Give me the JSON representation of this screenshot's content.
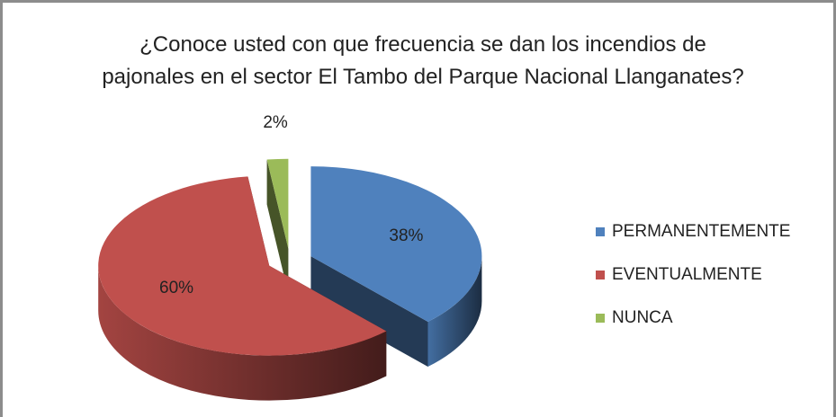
{
  "chart_data": {
    "type": "pie3d",
    "title": "¿Conoce usted con que frecuencia se dan los incendios de pajonales en el sector El Tambo del Parque Nacional Llanganates?",
    "categories": [
      "PERMANENTEMENTE",
      "EVENTUALMENTE",
      "NUNCA"
    ],
    "values": [
      38,
      60,
      2
    ],
    "value_labels": [
      "38%",
      "60%",
      "2%"
    ],
    "colors": [
      "#4f81bd",
      "#c0504d",
      "#9bbb59"
    ],
    "legend": "right"
  }
}
